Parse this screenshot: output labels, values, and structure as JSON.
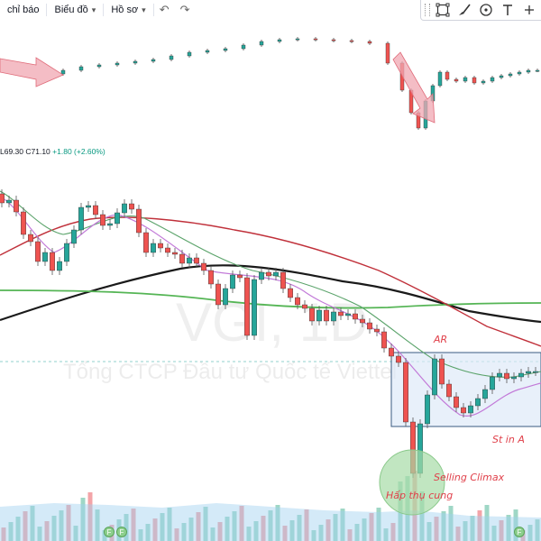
{
  "toolbar": {
    "indicators_label": "chỉ báo",
    "chart_label": "Biểu đồ",
    "profile_label": "Hồ sơ",
    "undo_icon": "↶",
    "redo_icon": "↷"
  },
  "drawing_tools": [
    "selection-rect-icon",
    "brush-icon",
    "circle-icon",
    "text-icon",
    "more-icon"
  ],
  "legend": {
    "low": "L69.30",
    "close": "C71.10",
    "change": "+1.80 (+2.60%)"
  },
  "watermark": {
    "symbol": "VGI, 1D",
    "company": "Tổng CTCP Đầu tư Quốc tế Viettel"
  },
  "annotations": {
    "ar": "AR",
    "st_in_a": "St in A",
    "selling_climax": "Selling Climax",
    "absorption": "Hấp thụ cung"
  },
  "colors": {
    "up": "#26a69a",
    "down": "#ef5350",
    "ma_fast": "#c27ad8",
    "ma_mid": "#5aa36a",
    "ma_long_red": "#c0303a",
    "ma_200": "#1a1a1a",
    "ma_green": "#55b555",
    "box_fill": "#dbe8f7",
    "box_stroke": "#3a5a80"
  },
  "markers": [
    "F",
    "F",
    "F"
  ]
}
